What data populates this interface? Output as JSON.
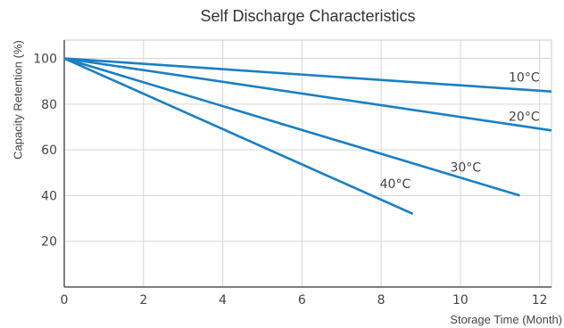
{
  "chart_data": {
    "type": "line",
    "title": "Self Discharge Characteristics",
    "xlabel": "Storage Time (Month)",
    "ylabel": "Capacity Retention (%)",
    "xlim": [
      0,
      12.3
    ],
    "ylim": [
      0,
      108
    ],
    "xticks": [
      0,
      2,
      4,
      6,
      8,
      10,
      12
    ],
    "yticks": [
      20,
      40,
      60,
      80,
      100
    ],
    "grid": true,
    "line_color": "#1a7fc4",
    "series": [
      {
        "name": "10°C",
        "x": [
          0,
          12.3
        ],
        "y": [
          100,
          85.5
        ]
      },
      {
        "name": "20°C",
        "x": [
          0,
          12.3
        ],
        "y": [
          100,
          68.5
        ]
      },
      {
        "name": "30°C",
        "x": [
          0,
          11.5
        ],
        "y": [
          100,
          40
        ]
      },
      {
        "name": "40°C",
        "x": [
          0,
          8.8
        ],
        "y": [
          100,
          32
        ]
      }
    ]
  }
}
